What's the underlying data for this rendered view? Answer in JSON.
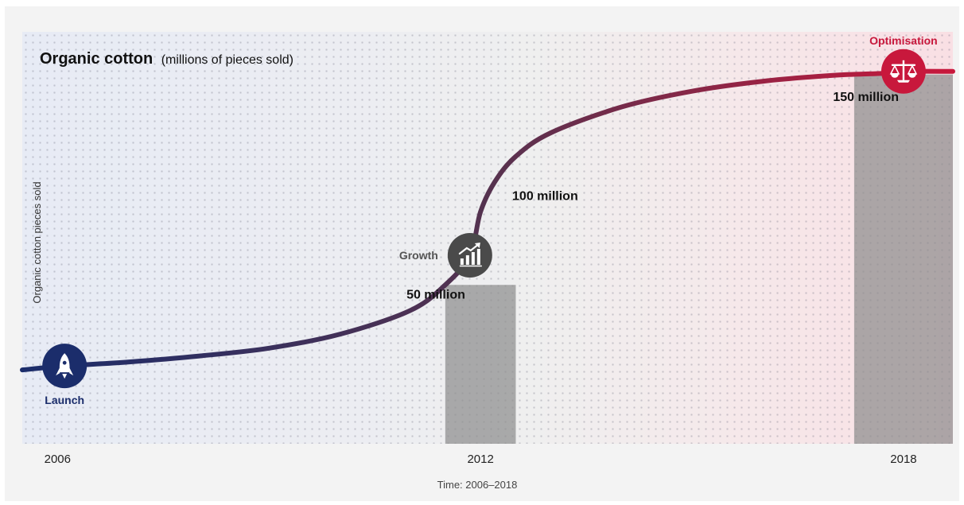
{
  "chart_data": {
    "type": "line",
    "title": "Organic cotton",
    "title_suffix": "(millions of pieces sold)",
    "ylabel": "Organic cotton pieces sold",
    "xlabel": "Time: 2006–2018",
    "x_ticks": [
      "2006",
      "2012",
      "2018"
    ],
    "xlim": [
      2005.5,
      2018.7
    ],
    "ylim": [
      0,
      175
    ],
    "grid": false,
    "series": [
      {
        "values_x": [
          2005.5,
          2006.1,
          2007,
          2008,
          2009,
          2010,
          2011,
          2011.5,
          2011.85,
          2012,
          2012.2,
          2012.5,
          2013,
          2014,
          2015,
          2016,
          2017,
          2017.7,
          2018,
          2018.7
        ],
        "values_y": [
          10,
          12,
          14,
          17,
          21,
          28,
          40,
          53,
          68,
          90,
          105,
          118,
          130,
          143,
          151,
          156,
          159,
          160,
          161,
          161
        ]
      }
    ],
    "annotations": [
      {
        "text": "50 million",
        "x": 2010.95,
        "y": 50
      },
      {
        "text": "100 million",
        "x": 2012.45,
        "y": 100
      },
      {
        "text": "150 million",
        "x": 2017.0,
        "y": 150
      }
    ],
    "stages": [
      {
        "label": "Launch",
        "x": 2006.1,
        "y": 12,
        "icon": "rocket-icon",
        "color": "#1b2d6b"
      },
      {
        "label": "Growth",
        "x": 2011.85,
        "y": 68,
        "icon": "growth-chart-icon",
        "color": "#4a4a4a"
      },
      {
        "label": "Optimisation",
        "x": 2018,
        "y": 161,
        "icon": "balance-scale-icon",
        "color": "#c8183c"
      }
    ],
    "highlight_bands": [
      {
        "x0": 2011.5,
        "x1": 2012.5
      },
      {
        "x0": 2017.3,
        "x1": 2018.7
      }
    ],
    "line_gradient": [
      "#1b2d6b",
      "#55324f",
      "#c8183c"
    ]
  }
}
